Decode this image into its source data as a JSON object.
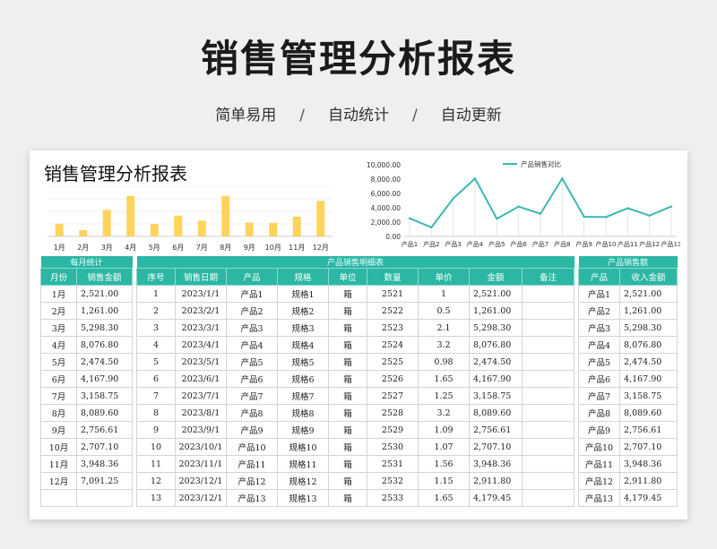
{
  "header": {
    "title": "销售管理分析报表",
    "tags": [
      "简单易用",
      "自动统计",
      "自动更新"
    ],
    "separator": "/"
  },
  "card": {
    "title": "销售管理分析报表"
  },
  "colors": {
    "teal": "#2bb7a3",
    "bar": "#ffd35c",
    "line": "#3cb8ad"
  },
  "chart_data": [
    {
      "type": "bar",
      "categories": [
        "1月",
        "2月",
        "3月",
        "4月",
        "5月",
        "6月",
        "7月",
        "8月",
        "9月",
        "10月",
        "11月",
        "12月"
      ],
      "values": [
        2521,
        1261,
        5298.3,
        8076.8,
        2474.5,
        4167.9,
        3158.75,
        8089.6,
        2756.61,
        2707.1,
        3948.36,
        7091.25
      ],
      "ylim": [
        0,
        10000
      ]
    },
    {
      "type": "line",
      "title": "产品销售对比",
      "categories": [
        "产品1",
        "产品2",
        "产品3",
        "产品4",
        "产品5",
        "产品6",
        "产品7",
        "产品8",
        "产品9",
        "产品10",
        "产品11",
        "产品12",
        "产品13"
      ],
      "values": [
        2521,
        1261,
        5298.3,
        8076.8,
        2474.5,
        4167.9,
        3158.75,
        8089.6,
        2756.61,
        2707.1,
        3948.36,
        2911.8,
        4179.45
      ],
      "yticks": [
        "0.00",
        "2,000.00",
        "4,000.00",
        "6,000.00",
        "8,000.00",
        "10,000.00"
      ],
      "ylim": [
        0,
        10000
      ]
    }
  ],
  "monthly": {
    "title": "每月统计",
    "headers": [
      "月份",
      "销售金额"
    ],
    "rows": [
      [
        "1月",
        "2,521.00"
      ],
      [
        "2月",
        "1,261.00"
      ],
      [
        "3月",
        "5,298.30"
      ],
      [
        "4月",
        "8,076.80"
      ],
      [
        "5月",
        "2,474.50"
      ],
      [
        "6月",
        "4,167.90"
      ],
      [
        "7月",
        "3,158.75"
      ],
      [
        "8月",
        "8,089.60"
      ],
      [
        "9月",
        "2,756.61"
      ],
      [
        "10月",
        "2,707.10"
      ],
      [
        "11月",
        "3,948.36"
      ],
      [
        "12月",
        "7,091.25"
      ],
      [
        "",
        ""
      ]
    ]
  },
  "detail": {
    "title": "产品销售明细表",
    "headers": [
      "序号",
      "销售日期",
      "产品",
      "规格",
      "单位",
      "数量",
      "单价",
      "金额",
      "备注"
    ],
    "rows": [
      [
        "1",
        "2023/1/1",
        "产品1",
        "规格1",
        "箱",
        "2521",
        "1",
        "2,521.00",
        ""
      ],
      [
        "2",
        "2023/2/1",
        "产品2",
        "规格2",
        "箱",
        "2522",
        "0.5",
        "1,261.00",
        ""
      ],
      [
        "3",
        "2023/3/1",
        "产品3",
        "规格3",
        "箱",
        "2523",
        "2.1",
        "5,298.30",
        ""
      ],
      [
        "4",
        "2023/4/1",
        "产品4",
        "规格4",
        "箱",
        "2524",
        "3.2",
        "8,076.80",
        ""
      ],
      [
        "5",
        "2023/5/1",
        "产品5",
        "规格5",
        "箱",
        "2525",
        "0.98",
        "2,474.50",
        ""
      ],
      [
        "6",
        "2023/6/1",
        "产品6",
        "规格6",
        "箱",
        "2526",
        "1.65",
        "4,167.90",
        ""
      ],
      [
        "7",
        "2023/7/1",
        "产品7",
        "规格7",
        "箱",
        "2527",
        "1.25",
        "3,158.75",
        ""
      ],
      [
        "8",
        "2023/8/1",
        "产品8",
        "规格8",
        "箱",
        "2528",
        "3.2",
        "8,089.60",
        ""
      ],
      [
        "9",
        "2023/9/1",
        "产品9",
        "规格9",
        "箱",
        "2529",
        "1.09",
        "2,756.61",
        ""
      ],
      [
        "10",
        "2023/10/1",
        "产品10",
        "规格10",
        "箱",
        "2530",
        "1.07",
        "2,707.10",
        ""
      ],
      [
        "11",
        "2023/11/1",
        "产品11",
        "规格11",
        "箱",
        "2531",
        "1.56",
        "3,948.36",
        ""
      ],
      [
        "12",
        "2023/12/1",
        "产品12",
        "规格12",
        "箱",
        "2532",
        "1.15",
        "2,911.80",
        ""
      ],
      [
        "13",
        "2023/12/1",
        "产品13",
        "规格13",
        "箱",
        "2533",
        "1.65",
        "4,179.45",
        ""
      ]
    ]
  },
  "product": {
    "title": "产品销售额",
    "headers": [
      "产品",
      "收入金额"
    ],
    "rows": [
      [
        "产品1",
        "2,521.00"
      ],
      [
        "产品2",
        "1,261.00"
      ],
      [
        "产品3",
        "5,298.30"
      ],
      [
        "产品4",
        "8,076.80"
      ],
      [
        "产品5",
        "2,474.50"
      ],
      [
        "产品6",
        "4,167.90"
      ],
      [
        "产品7",
        "3,158.75"
      ],
      [
        "产品8",
        "8,089.60"
      ],
      [
        "产品9",
        "2,756.61"
      ],
      [
        "产品10",
        "2,707.10"
      ],
      [
        "产品11",
        "3,948.36"
      ],
      [
        "产品12",
        "2,911.80"
      ],
      [
        "产品13",
        "4,179.45"
      ]
    ]
  }
}
